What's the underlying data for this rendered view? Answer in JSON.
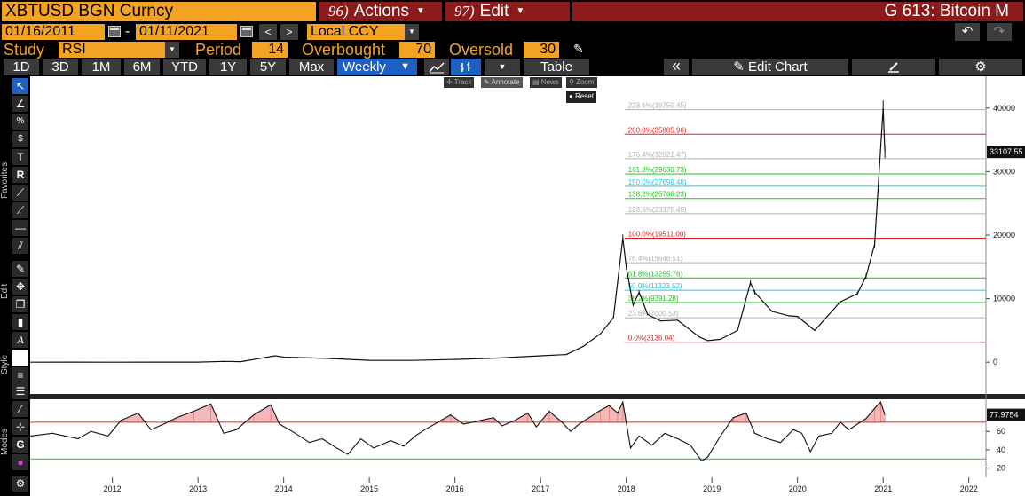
{
  "header": {
    "ticker": "XBTUSD BGN  Curncy",
    "actions_num": "96)",
    "actions_label": "Actions",
    "edit_num": "97)",
    "edit_label": "Edit",
    "title": "G 613: Bitcoin M"
  },
  "dates": {
    "start": "01/16/2011",
    "dash": "-",
    "end": "01/11/2021",
    "currency": "Local CCY"
  },
  "study": {
    "label": "Study",
    "value": "RSI",
    "period_label": "Period",
    "period": "14",
    "overbought_label": "Overbought",
    "overbought": "70",
    "oversold_label": "Oversold",
    "oversold": "30"
  },
  "toolbar": {
    "ranges": [
      "1D",
      "3D",
      "1M",
      "6M",
      "YTD",
      "1Y",
      "5Y",
      "Max"
    ],
    "frequency": "Weekly",
    "table": "Table",
    "edit_chart": "Edit Chart",
    "collapse": "«"
  },
  "popup": {
    "track": "Track",
    "annotate": "Annotate",
    "news": "News",
    "zoom": "Zoom",
    "reset": "Reset"
  },
  "sidebar": {
    "favorites": "Favorites",
    "edit": "Edit",
    "style": "Style",
    "modes": "Modes"
  },
  "colors": {
    "bb_orange": "#f4a223",
    "bb_red": "#8b1a1a",
    "fib_red": "#e02020",
    "fib_green": "#22c022",
    "fib_cyan": "#20c8e8",
    "fib_gray": "#b0b0b0",
    "rsi_fill": "#f4b8b8"
  },
  "chart_data": {
    "type": "line",
    "price": {
      "x": [
        2011.04,
        2011.5,
        2012.0,
        2012.5,
        2013.0,
        2013.3,
        2013.5,
        2013.9,
        2014.0,
        2014.5,
        2015.0,
        2015.5,
        2016.0,
        2016.5,
        2017.0,
        2017.3,
        2017.5,
        2017.7,
        2017.85,
        2017.96,
        2018.0,
        2018.08,
        2018.15,
        2018.25,
        2018.4,
        2018.6,
        2018.85,
        2018.95,
        2019.1,
        2019.3,
        2019.45,
        2019.5,
        2019.7,
        2019.9,
        2020.0,
        2020.2,
        2020.5,
        2020.7,
        2020.8,
        2020.9,
        2021.0,
        2021.02
      ],
      "y": [
        0.4,
        15,
        6,
        8,
        13,
        120,
        80,
        1000,
        800,
        600,
        300,
        280,
        430,
        650,
        1000,
        1200,
        2500,
        4500,
        7000,
        19500,
        15000,
        9000,
        11000,
        7500,
        6500,
        6600,
        4000,
        3400,
        3600,
        5000,
        12500,
        11000,
        8000,
        7300,
        7200,
        5000,
        9500,
        10800,
        13500,
        18500,
        40000,
        33107.55
      ],
      "last": "33107.55",
      "ylim": [
        -5000,
        45000
      ],
      "yticks": [
        "40000",
        "30000",
        "20000",
        "10000",
        "0"
      ]
    },
    "fibonacci": {
      "low": 3136.04,
      "high": 19511.0,
      "levels": [
        {
          "label": "0.0%(3136.04)",
          "value": 3136.04,
          "color": "red"
        },
        {
          "label": "23.6%(7000.53)",
          "value": 7000.53,
          "color": "gray"
        },
        {
          "label": "38.2%(9391.28)",
          "value": 9391.28,
          "color": "green"
        },
        {
          "label": "50.0%(11323.52)",
          "value": 11323.52,
          "color": "cyan"
        },
        {
          "label": "61.8%(13255.76)",
          "value": 13255.76,
          "color": "green"
        },
        {
          "label": "76.4%(15646.51)",
          "value": 15646.51,
          "color": "gray"
        },
        {
          "label": "100.0%(19511.00)",
          "value": 19511.0,
          "color": "red"
        },
        {
          "label": "123.6%(23375.49)",
          "value": 23375.49,
          "color": "gray"
        },
        {
          "label": "138.2%(25766.23)",
          "value": 25766.23,
          "color": "green"
        },
        {
          "label": "150.0%(27698.48)",
          "value": 27698.48,
          "color": "cyan"
        },
        {
          "label": "161.8%(29630.73)",
          "value": 29630.73,
          "color": "green"
        },
        {
          "label": "176.4%(32021.47)",
          "value": 32021.47,
          "color": "gray"
        },
        {
          "label": "200.0%(35885.96)",
          "value": 35885.96,
          "color": "red"
        },
        {
          "label": "223.6%(39750.45)",
          "value": 39750.45,
          "color": "gray"
        }
      ]
    },
    "rsi": {
      "last": "77.9754",
      "overbought": 70,
      "oversold": 30,
      "ylim": [
        10,
        95
      ],
      "yticks": [
        "60",
        "40",
        "20"
      ],
      "x": [
        2011.04,
        2011.3,
        2011.6,
        2011.75,
        2011.95,
        2012.1,
        2012.3,
        2012.45,
        2012.6,
        2012.75,
        2012.95,
        2013.15,
        2013.3,
        2013.45,
        2013.65,
        2013.85,
        2013.95,
        2014.1,
        2014.3,
        2014.45,
        2014.6,
        2014.75,
        2014.9,
        2015.05,
        2015.25,
        2015.4,
        2015.55,
        2015.65,
        2015.8,
        2015.95,
        2016.1,
        2016.3,
        2016.45,
        2016.55,
        2016.7,
        2016.85,
        2016.95,
        2017.1,
        2017.25,
        2017.35,
        2017.45,
        2017.55,
        2017.7,
        2017.8,
        2017.9,
        2017.96,
        2018.05,
        2018.15,
        2018.3,
        2018.45,
        2018.6,
        2018.75,
        2018.88,
        2018.95,
        2019.1,
        2019.25,
        2019.4,
        2019.5,
        2019.65,
        2019.8,
        2019.95,
        2020.05,
        2020.15,
        2020.25,
        2020.4,
        2020.5,
        2020.6,
        2020.7,
        2020.8,
        2020.9,
        2020.97,
        2021.02
      ],
      "y": [
        55,
        58,
        52,
        60,
        55,
        72,
        80,
        62,
        68,
        75,
        82,
        90,
        58,
        62,
        78,
        89,
        68,
        60,
        48,
        52,
        43,
        35,
        52,
        42,
        50,
        44,
        56,
        62,
        70,
        78,
        68,
        72,
        75,
        66,
        72,
        80,
        65,
        82,
        70,
        60,
        68,
        74,
        83,
        88,
        80,
        92,
        42,
        55,
        45,
        58,
        52,
        45,
        28,
        32,
        55,
        75,
        80,
        58,
        52,
        48,
        62,
        58,
        38,
        55,
        58,
        70,
        62,
        68,
        74,
        85,
        92,
        77.98
      ]
    },
    "x_ticks": [
      "2012",
      "2013",
      "2014",
      "2015",
      "2016",
      "2017",
      "2018",
      "2019",
      "2020",
      "2021",
      "2022"
    ],
    "xlim": [
      2011.04,
      2022.2
    ]
  }
}
